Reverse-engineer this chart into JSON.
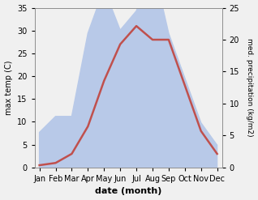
{
  "months": [
    "Jan",
    "Feb",
    "Mar",
    "Apr",
    "May",
    "Jun",
    "Jul",
    "Aug",
    "Sep",
    "Oct",
    "Nov",
    "Dec"
  ],
  "temp": [
    0.5,
    1.0,
    3.0,
    9.0,
    19.0,
    27.0,
    31.0,
    28.0,
    28.0,
    18.0,
    8.0,
    3.0
  ],
  "precip": [
    5.5,
    8.0,
    8.0,
    21.0,
    28.0,
    21.5,
    24.5,
    32.0,
    21.0,
    14.0,
    7.0,
    3.5
  ],
  "temp_color": "#c0504d",
  "precip_fill_color": "#b8c9e8",
  "temp_ylim": [
    0,
    35
  ],
  "precip_ylim": [
    0,
    25
  ],
  "temp_yticks": [
    0,
    5,
    10,
    15,
    20,
    25,
    30,
    35
  ],
  "precip_yticks": [
    0,
    5,
    10,
    15,
    20,
    25
  ],
  "xlabel": "date (month)",
  "ylabel_left": "max temp (C)",
  "ylabel_right": "med. precipitation (kg/m2)",
  "figsize": [
    3.18,
    2.47
  ],
  "dpi": 100,
  "bg_color": "#f0f0f0"
}
